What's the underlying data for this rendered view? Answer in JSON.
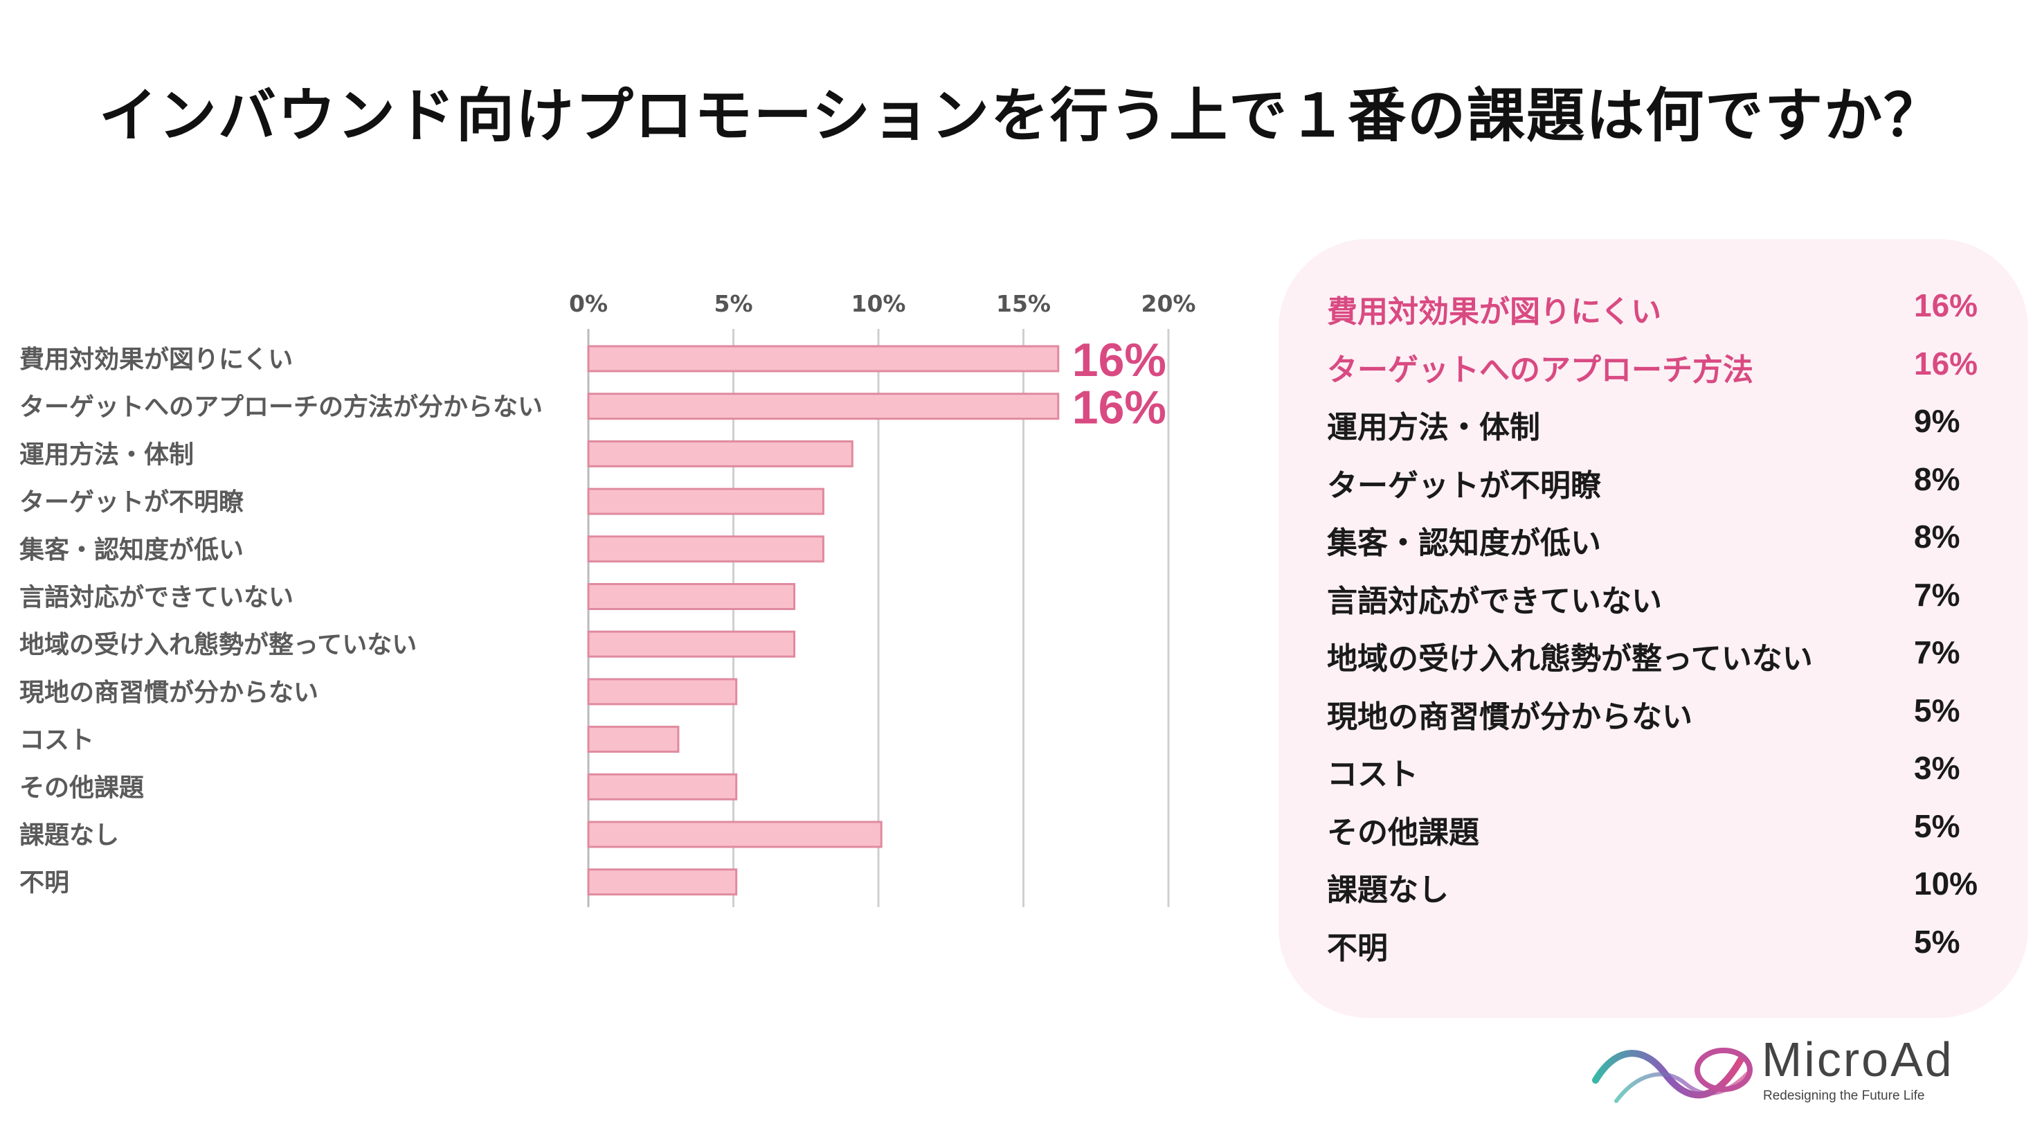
{
  "title": "インバウンド向けプロモーションを行う上で１番の課題は何ですか？",
  "colors": {
    "bar_fill": "#f9c0cb",
    "bar_stroke": "#e08aa0",
    "highlight": "#d94a82",
    "panel_bg": "#fdf1f5"
  },
  "chart_data": {
    "type": "bar",
    "orientation": "horizontal",
    "title": "インバウンド向けプロモーションを行う上で１番の課題は何ですか？",
    "xlim": [
      0,
      20
    ],
    "xticks": [
      "0%",
      "5%",
      "10%",
      "15%",
      "20%"
    ],
    "categories": [
      "費用対効果が図りにくい",
      "ターゲットへのアプローチの方法が分からない",
      "運用方法・体制",
      "ターゲットが不明瞭",
      "集客・認知度が低い",
      "言語対応ができていない",
      "地域の受け入れ態勢が整っていない",
      "現地の商習慣が分からない",
      "コスト",
      "その他課題",
      "課題なし",
      "不明"
    ],
    "values": [
      16.2,
      16.2,
      9.1,
      8.1,
      8.1,
      7.1,
      7.1,
      5.1,
      3.1,
      5.1,
      10.1,
      5.1
    ],
    "data_labels": [
      "16%",
      "16%",
      "",
      "",
      "",
      "",
      "",
      "",
      "",
      "",
      "",
      ""
    ]
  },
  "legend_table": {
    "rows": [
      {
        "label": "費用対効果が図りにくい",
        "value": "16%",
        "highlight": true
      },
      {
        "label": "ターゲットへのアプローチ方法",
        "value": "16%",
        "highlight": true
      },
      {
        "label": "運用方法・体制",
        "value": "9%",
        "highlight": false
      },
      {
        "label": "ターゲットが不明瞭",
        "value": "8%",
        "highlight": false
      },
      {
        "label": "集客・認知度が低い",
        "value": "8%",
        "highlight": false
      },
      {
        "label": "言語対応ができていない",
        "value": "7%",
        "highlight": false
      },
      {
        "label": "地域の受け入れ態勢が整っていない",
        "value": "7%",
        "highlight": false
      },
      {
        "label": "現地の商習慣が分からない",
        "value": "5%",
        "highlight": false
      },
      {
        "label": "コスト",
        "value": "3%",
        "highlight": false
      },
      {
        "label": "その他課題",
        "value": "5%",
        "highlight": false
      },
      {
        "label": "課題なし",
        "value": "10%",
        "highlight": false
      },
      {
        "label": "不明",
        "value": "5%",
        "highlight": false
      }
    ]
  },
  "logo": {
    "name": "MicroAd",
    "tagline": "Redesigning the Future Life"
  }
}
